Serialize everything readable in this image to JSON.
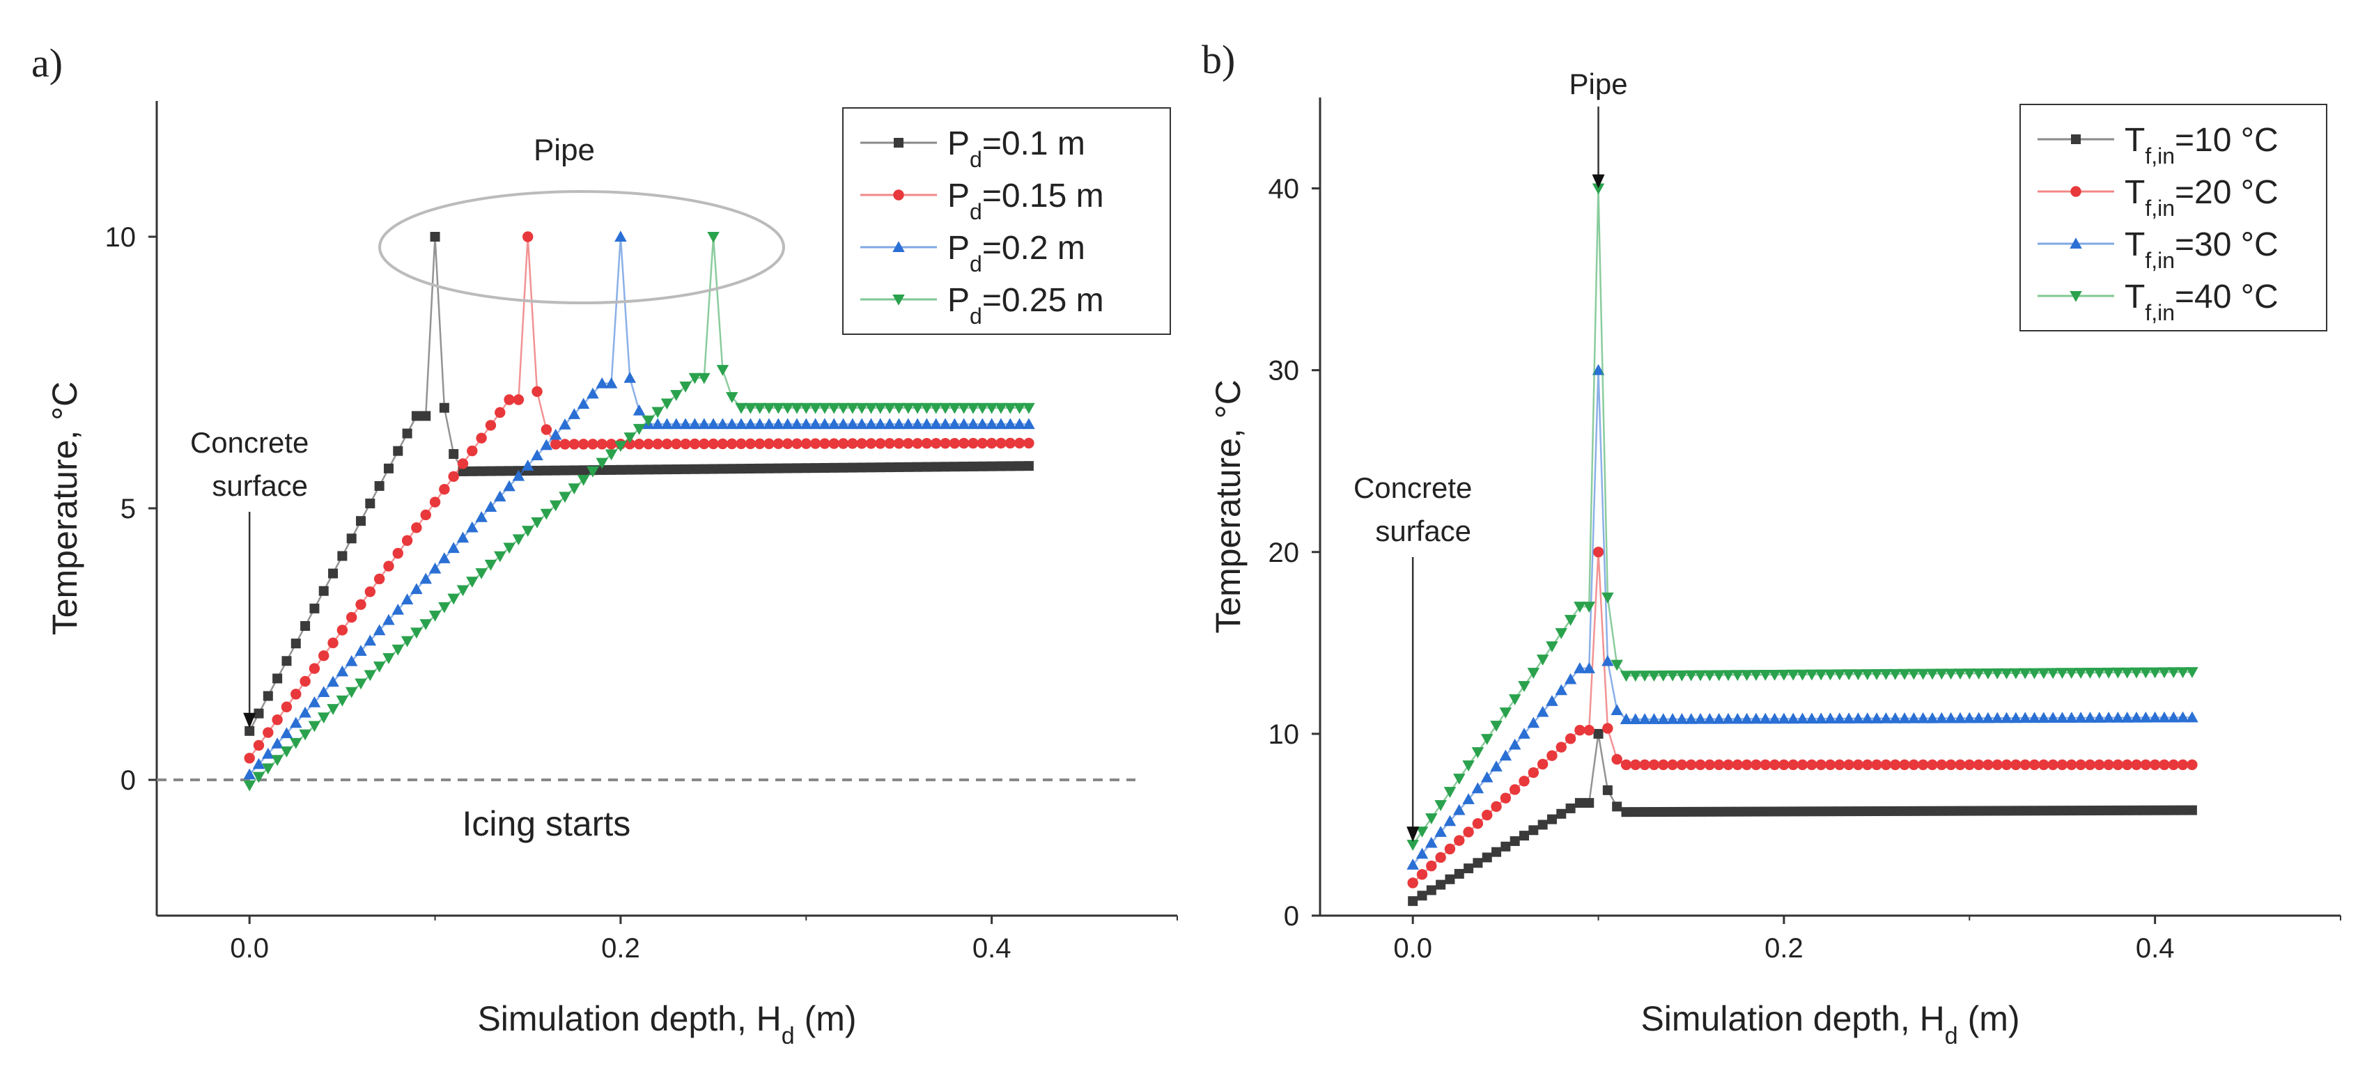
{
  "chart_data": [
    {
      "type": "line",
      "panel_label": "a)",
      "xlabel": "Simulation depth, H",
      "xlabel_sub": "d",
      "xlabel_suffix": " (m)",
      "ylabel": "Temperature, °C",
      "xlim": [
        -0.05,
        0.5
      ],
      "ylim": [
        -2.5,
        12.5
      ],
      "xticks": [
        0.0,
        0.2,
        0.4
      ],
      "xtick_labels": [
        "0.0",
        "0.2",
        "0.4"
      ],
      "yticks": [
        0,
        5,
        10
      ],
      "ytick_labels": [
        "0",
        "5",
        "10"
      ],
      "legend_position": "top-right",
      "reference_line": {
        "y": 0,
        "style": "dashed",
        "color": "#888888",
        "label": "Icing starts"
      },
      "annotations": [
        {
          "text": "Pipe",
          "style": "ellipse",
          "x": 0.175,
          "y": 10
        },
        {
          "text": "Concrete",
          "text2": "surface",
          "style": "arrow",
          "x": 0.0,
          "y": 0.9
        }
      ],
      "series": [
        {
          "name": "P",
          "name_sub": "d",
          "name_suffix": "=0.1 m",
          "color": "#3a3a3a",
          "marker": "square",
          "pipe_depth": 0.1,
          "start": 0.9,
          "pipe_temp": 10,
          "near_peak": 6.7,
          "post_peak": 6.85,
          "after_peak": 6.0,
          "plateau_start": 5.68,
          "plateau_end": 5.78,
          "step": 0.005,
          "x_end": 0.42
        },
        {
          "name": "P",
          "name_sub": "d",
          "name_suffix": "=0.15 m",
          "color": "#e8383b",
          "marker": "circle",
          "pipe_depth": 0.15,
          "start": 0.4,
          "pipe_temp": 10,
          "near_peak": 7.0,
          "post_peak": 7.15,
          "after_peak": 6.45,
          "plateau_start": 6.18,
          "plateau_end": 6.2,
          "step": 0.005,
          "x_end": 0.42
        },
        {
          "name": "P",
          "name_sub": "d",
          "name_suffix": "=0.2 m",
          "color": "#2a6fd4",
          "marker": "triangle-up",
          "pipe_depth": 0.2,
          "start": 0.1,
          "pipe_temp": 10,
          "near_peak": 7.3,
          "post_peak": 7.4,
          "after_peak": 6.8,
          "plateau_start": 6.55,
          "plateau_end": 6.55,
          "step": 0.005,
          "x_end": 0.42
        },
        {
          "name": "P",
          "name_sub": "d",
          "name_suffix": "=0.25 m",
          "color": "#2aa24d",
          "marker": "triangle-down",
          "pipe_depth": 0.25,
          "start": -0.1,
          "pipe_temp": 10,
          "near_peak": 7.4,
          "post_peak": 7.55,
          "after_peak": 7.05,
          "plateau_start": 6.85,
          "plateau_end": 6.85,
          "step": 0.005,
          "x_end": 0.42
        }
      ]
    },
    {
      "type": "line",
      "panel_label": "b)",
      "xlabel": "Simulation depth, H",
      "xlabel_sub": "d",
      "xlabel_suffix": " (m)",
      "ylabel": "Temperature, °C",
      "xlim": [
        -0.05,
        0.5
      ],
      "ylim": [
        0,
        45
      ],
      "xticks": [
        0.0,
        0.2,
        0.4
      ],
      "xtick_labels": [
        "0.0",
        "0.2",
        "0.4"
      ],
      "yticks": [
        0,
        10,
        20,
        30,
        40
      ],
      "ytick_labels": [
        "0",
        "10",
        "20",
        "30",
        "40"
      ],
      "legend_position": "top-right",
      "annotations": [
        {
          "text": "Pipe",
          "style": "arrow",
          "x": 0.1,
          "y": 40
        },
        {
          "text": "Concrete",
          "text2": "surface",
          "style": "arrow",
          "x": 0.0,
          "y": 3.9
        }
      ],
      "series": [
        {
          "name": "T",
          "name_sub": "f,in",
          "name_suffix": "=10 °C",
          "color": "#3a3a3a",
          "marker": "square",
          "pipe_depth": 0.1,
          "start": 0.8,
          "pipe_temp": 10,
          "near_peak": 6.2,
          "post_peak": 6.9,
          "after_peak": 6.0,
          "plateau_start": 5.7,
          "plateau_end": 5.8,
          "step": 0.005,
          "x_end": 0.42
        },
        {
          "name": "T",
          "name_sub": "f,in",
          "name_suffix": "=20 °C",
          "color": "#e8383b",
          "marker": "circle",
          "pipe_depth": 0.1,
          "start": 1.8,
          "pipe_temp": 20,
          "near_peak": 10.2,
          "post_peak": 10.3,
          "after_peak": 8.6,
          "plateau_start": 8.3,
          "plateau_end": 8.3,
          "step": 0.005,
          "x_end": 0.42
        },
        {
          "name": "T",
          "name_sub": "f,in",
          "name_suffix": "=30 °C",
          "color": "#2a6fd4",
          "marker": "triangle-up",
          "pipe_depth": 0.1,
          "start": 2.8,
          "pipe_temp": 30,
          "near_peak": 13.6,
          "post_peak": 14.0,
          "after_peak": 11.3,
          "plateau_start": 10.8,
          "plateau_end": 10.9,
          "step": 0.005,
          "x_end": 0.42
        },
        {
          "name": "T",
          "name_sub": "f,in",
          "name_suffix": "=40 °C",
          "color": "#2aa24d",
          "marker": "triangle-down",
          "pipe_depth": 0.1,
          "start": 3.9,
          "pipe_temp": 40,
          "near_peak": 17.0,
          "post_peak": 17.5,
          "after_peak": 13.8,
          "plateau_start": 13.2,
          "plateau_end": 13.4,
          "step": 0.005,
          "x_end": 0.42
        }
      ]
    }
  ]
}
